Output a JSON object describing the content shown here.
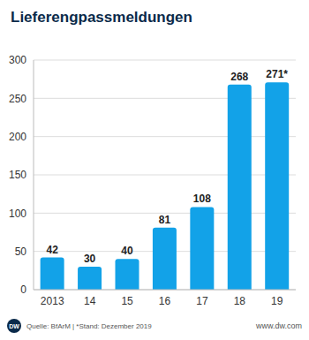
{
  "chart_data": {
    "type": "bar",
    "title": "Lieferengpassmeldungen",
    "categories": [
      "2013",
      "14",
      "15",
      "16",
      "17",
      "18",
      "19"
    ],
    "values": [
      42,
      30,
      40,
      81,
      108,
      268,
      271
    ],
    "value_labels": [
      "42",
      "30",
      "40",
      "81",
      "108",
      "268",
      "271*"
    ],
    "data_labels": true,
    "color": "#12a2e8",
    "ylim": [
      0,
      300
    ],
    "yticks": [
      0,
      50,
      100,
      150,
      200,
      250,
      300
    ],
    "grid": true,
    "annotations": [
      "Quelle: BfArM | *Stand: Dezember 2019",
      "DW",
      "www.dw.com"
    ]
  }
}
